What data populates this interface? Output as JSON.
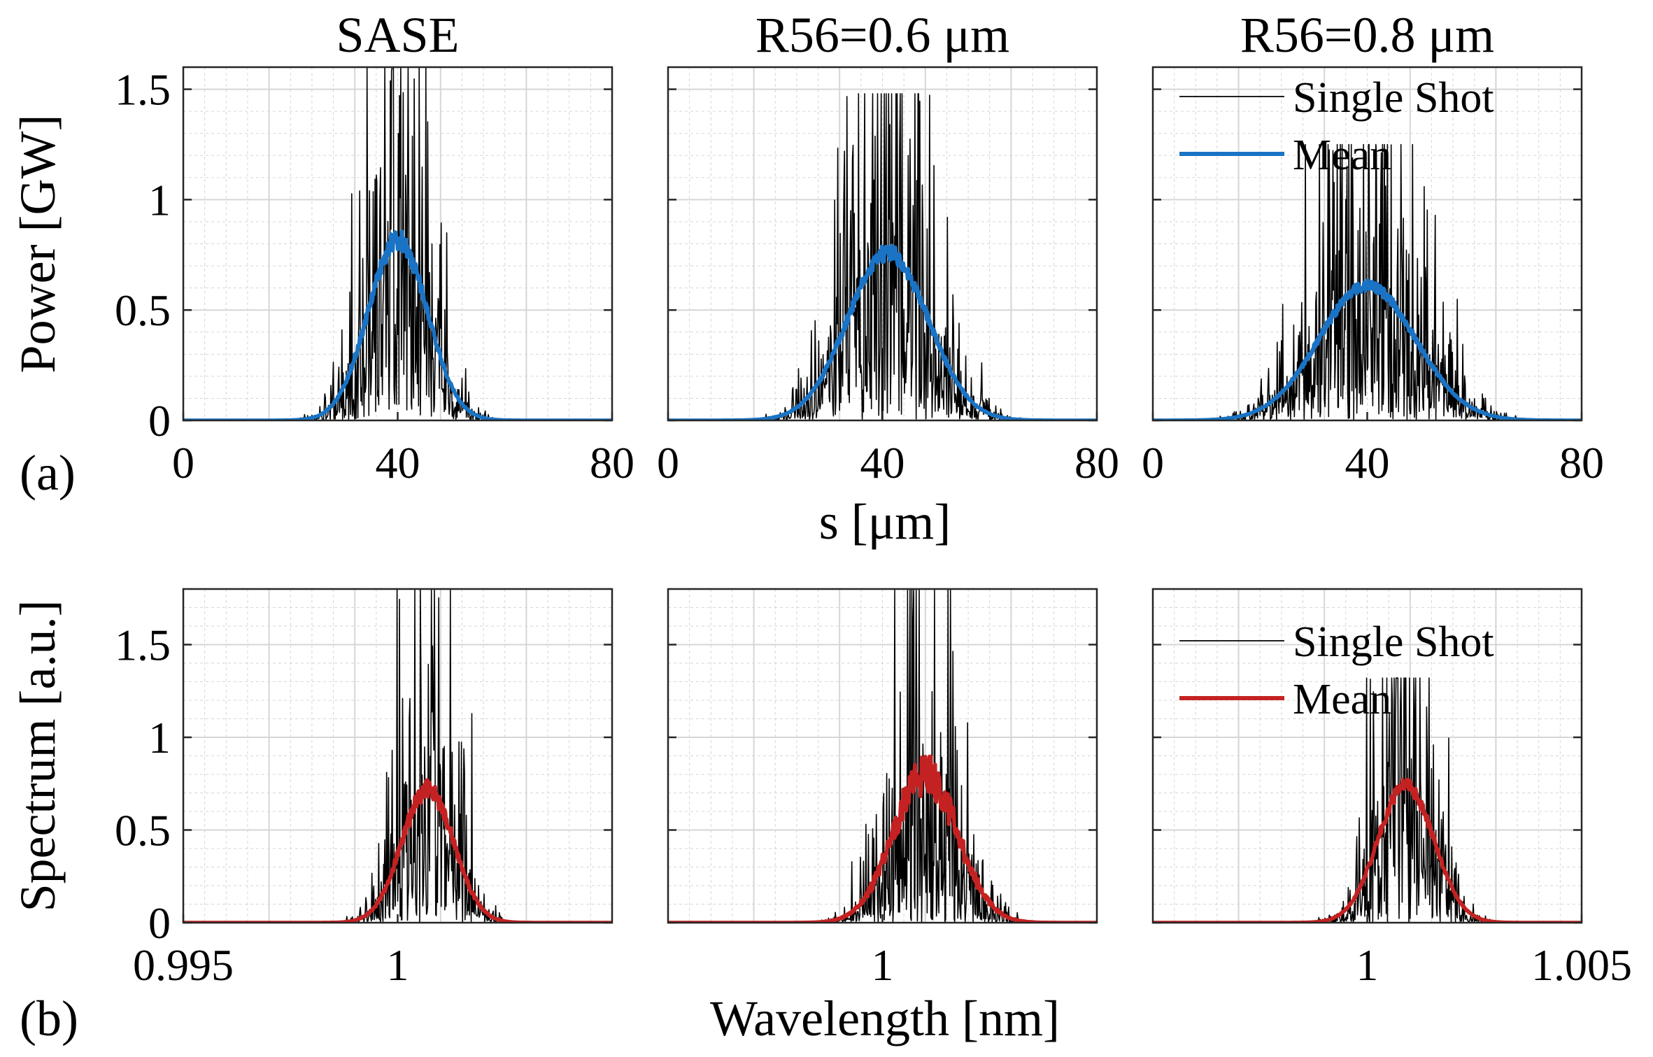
{
  "figure": {
    "panel_labels": [
      "(a)",
      "(b)"
    ],
    "shared_xlabels": {
      "top": "s [μm]",
      "bottom": "Wavelength [nm]"
    }
  },
  "colors": {
    "single_shot": "#000000",
    "mean_power": "#1a73c4",
    "mean_spectrum": "#c42222",
    "grid": "#d6d6d6",
    "axes": "#262626"
  },
  "chart_data": [
    {
      "id": "power-sase",
      "type": "line",
      "row": 0,
      "col": 0,
      "title": "SASE",
      "xlabel": "",
      "ylabel": "Power [GW]",
      "xlim": [
        0,
        80
      ],
      "ylim": [
        0,
        1.6
      ],
      "xticks": [
        0,
        40,
        80
      ],
      "xtick_labels": [
        "0",
        "40",
        "80"
      ],
      "yticks": [
        0,
        0.5,
        1,
        1.5
      ],
      "ytick_labels": [
        "0",
        "0.5",
        "1",
        "1.5"
      ],
      "grid": true,
      "legend": null,
      "series": [
        {
          "name": "Single Shot",
          "color_key": "single_shot",
          "kind": "noisy",
          "envelope": {
            "center": 40,
            "sigma": 5.5,
            "peak": 0.85
          },
          "max_spike": 1.6,
          "seed": 11,
          "samples": 700
        },
        {
          "name": "Mean",
          "color_key": "mean_power",
          "kind": "smooth",
          "envelope": {
            "center": 40,
            "sigma": 5.5,
            "peak": 0.82
          },
          "ripple": 0.06,
          "seed": 21,
          "samples": 700
        }
      ]
    },
    {
      "id": "power-r56-06",
      "type": "line",
      "row": 0,
      "col": 1,
      "title": "R56=0.6 μm",
      "xlabel": "",
      "ylabel": "",
      "xlim": [
        0,
        80
      ],
      "ylim": [
        0,
        1.6
      ],
      "xticks": [
        0,
        40,
        80
      ],
      "xtick_labels": [
        "0",
        "40",
        "80"
      ],
      "yticks": [
        0,
        0.5,
        1,
        1.5
      ],
      "ytick_labels": [],
      "grid": true,
      "legend": null,
      "series": [
        {
          "name": "Single Shot",
          "color_key": "single_shot",
          "kind": "noisy",
          "envelope": {
            "center": 41,
            "sigma": 7.5,
            "peak": 0.8
          },
          "max_spike": 1.48,
          "seed": 12,
          "samples": 700
        },
        {
          "name": "Mean",
          "color_key": "mean_power",
          "kind": "smooth",
          "envelope": {
            "center": 41,
            "sigma": 7.5,
            "peak": 0.76
          },
          "ripple": 0.05,
          "seed": 22,
          "samples": 700
        }
      ]
    },
    {
      "id": "power-r56-08",
      "type": "line",
      "row": 0,
      "col": 2,
      "title": "R56=0.8 μm",
      "xlabel": "",
      "ylabel": "",
      "xlim": [
        0,
        80
      ],
      "ylim": [
        0,
        1.6
      ],
      "xticks": [
        0,
        40,
        80
      ],
      "xtick_labels": [
        "0",
        "40",
        "80"
      ],
      "yticks": [
        0,
        0.5,
        1,
        1.5
      ],
      "ytick_labels": [],
      "grid": true,
      "legend": {
        "placement": "top-right",
        "entries": [
          "Single Shot",
          "Mean"
        ]
      },
      "series": [
        {
          "name": "Single Shot",
          "color_key": "single_shot",
          "kind": "noisy",
          "envelope": {
            "center": 40,
            "sigma": 9,
            "peak": 0.63
          },
          "max_spike": 1.25,
          "seed": 13,
          "samples": 700
        },
        {
          "name": "Mean",
          "color_key": "mean_power",
          "kind": "smooth",
          "envelope": {
            "center": 40,
            "sigma": 9,
            "peak": 0.61
          },
          "ripple": 0.04,
          "seed": 23,
          "samples": 700
        }
      ]
    },
    {
      "id": "spectrum-sase",
      "type": "line",
      "row": 1,
      "col": 0,
      "title": "",
      "xlabel": "",
      "ylabel": "Spectrum [a.u.]",
      "xlim": [
        0.995,
        1.005
      ],
      "ylim": [
        0,
        1.8
      ],
      "xticks": [
        0.995,
        1
      ],
      "xtick_labels": [
        "0.995",
        "1"
      ],
      "yticks": [
        0,
        0.5,
        1,
        1.5
      ],
      "ytick_labels": [
        "0",
        "0.5",
        "1",
        "1.5"
      ],
      "grid": true,
      "legend": null,
      "series": [
        {
          "name": "Single Shot",
          "color_key": "single_shot",
          "kind": "noisy",
          "envelope": {
            "center": 1.0007,
            "sigma": 0.0006,
            "peak": 0.72
          },
          "max_spike": 1.8,
          "seed": 14,
          "samples": 700
        },
        {
          "name": "Mean",
          "color_key": "mean_spectrum",
          "kind": "smooth",
          "envelope": {
            "center": 1.0007,
            "sigma": 0.0006,
            "peak": 0.72
          },
          "ripple": 0.07,
          "seed": 24,
          "samples": 700
        }
      ]
    },
    {
      "id": "spectrum-r56-06",
      "type": "line",
      "row": 1,
      "col": 1,
      "title": "",
      "xlabel": "",
      "ylabel": "",
      "xlim": [
        0.995,
        1.005
      ],
      "ylim": [
        0,
        1.8
      ],
      "xticks": [
        1
      ],
      "xtick_labels": [
        "1"
      ],
      "yticks": [
        0,
        0.5,
        1,
        1.5
      ],
      "ytick_labels": [],
      "grid": true,
      "legend": null,
      "series": [
        {
          "name": "Single Shot",
          "color_key": "single_shot",
          "kind": "noisy",
          "envelope": {
            "center": 1.001,
            "sigma": 0.00075,
            "peak": 0.78
          },
          "max_spike": 1.8,
          "seed": 15,
          "samples": 700
        },
        {
          "name": "Mean",
          "color_key": "mean_spectrum",
          "kind": "smooth",
          "envelope": {
            "center": 1.001,
            "sigma": 0.00075,
            "peak": 0.8
          },
          "ripple": 0.14,
          "seed": 25,
          "samples": 700
        }
      ]
    },
    {
      "id": "spectrum-r56-08",
      "type": "line",
      "row": 1,
      "col": 2,
      "title": "",
      "xlabel": "",
      "ylabel": "",
      "xlim": [
        0.995,
        1.005
      ],
      "ylim": [
        0,
        1.8
      ],
      "xticks": [
        1,
        1.005
      ],
      "xtick_labels": [
        "1",
        "1.005"
      ],
      "yticks": [
        0,
        0.5,
        1,
        1.5
      ],
      "ytick_labels": [],
      "grid": true,
      "legend": {
        "placement": "top-right",
        "entries": [
          "Single Shot",
          "Mean"
        ]
      },
      "series": [
        {
          "name": "Single Shot",
          "color_key": "single_shot",
          "kind": "noisy",
          "envelope": {
            "center": 1.0009,
            "sigma": 0.00065,
            "peak": 0.72
          },
          "max_spike": 1.32,
          "seed": 16,
          "samples": 700
        },
        {
          "name": "Mean",
          "color_key": "mean_spectrum",
          "kind": "smooth",
          "envelope": {
            "center": 1.0009,
            "sigma": 0.00065,
            "peak": 0.74
          },
          "ripple": 0.05,
          "seed": 26,
          "samples": 700
        }
      ]
    }
  ]
}
